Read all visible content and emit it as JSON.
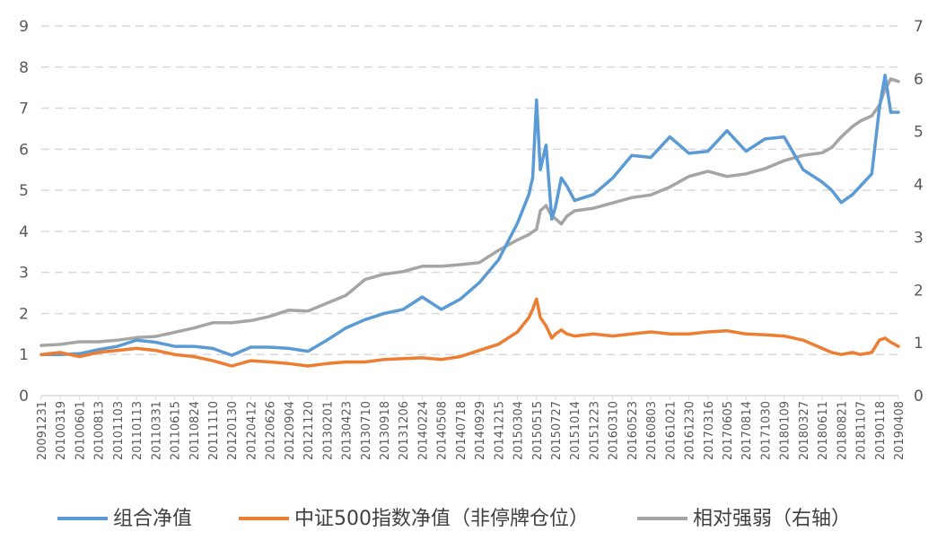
{
  "chart_data": {
    "type": "line",
    "title": "",
    "xlabel": "",
    "ylabel": "",
    "grid": true,
    "legend": "bottom",
    "left_axis": {
      "ylim": [
        0,
        9
      ],
      "ticks": [
        "0",
        "1",
        "2",
        "3",
        "4",
        "5",
        "6",
        "7",
        "8",
        "9"
      ]
    },
    "right_axis": {
      "ylim": [
        0,
        7
      ],
      "ticks": [
        "0",
        "1",
        "2",
        "3",
        "4",
        "5",
        "6",
        "7"
      ]
    },
    "x_tick_labels": [
      "20091231",
      "20100319",
      "20100601",
      "20100813",
      "20101103",
      "20110113",
      "20110331",
      "20110615",
      "20110824",
      "20111110",
      "20120130",
      "20120412",
      "20120626",
      "20120904",
      "20121120",
      "20130201",
      "20130423",
      "20130710",
      "20130918",
      "20131206",
      "20140224",
      "20140508",
      "20140718",
      "20140929",
      "20141215",
      "20150304",
      "20150515",
      "20150727",
      "20151014",
      "20151223",
      "20160310",
      "20160523",
      "20160803",
      "20161021",
      "20161230",
      "20170316",
      "20170605",
      "20170814",
      "20171030",
      "20180109",
      "20180327",
      "20180611",
      "20180821",
      "20181107",
      "20190118",
      "20190408"
    ],
    "series": [
      {
        "name": "组合净值",
        "color": "#5B9BD5",
        "axis": "left",
        "x_index": [
          0,
          1,
          2,
          3,
          4,
          5,
          6,
          7,
          8,
          9,
          10,
          11,
          12,
          13,
          14,
          15,
          16,
          17,
          18,
          19,
          20,
          21,
          22,
          23,
          24,
          25,
          25.6,
          25.8,
          26,
          26.2,
          26.5,
          26.8,
          27,
          27.3,
          27.6,
          28,
          29,
          30,
          31,
          32,
          33,
          34,
          35,
          36,
          37,
          38,
          39,
          40,
          41,
          41.5,
          42,
          42.6,
          43,
          43.6,
          44,
          44.3,
          44.6,
          45
        ],
        "values": [
          1.0,
          1.0,
          1.02,
          1.12,
          1.2,
          1.35,
          1.3,
          1.2,
          1.2,
          1.15,
          0.98,
          1.18,
          1.18,
          1.15,
          1.08,
          1.35,
          1.65,
          1.85,
          2.0,
          2.1,
          2.4,
          2.1,
          2.35,
          2.75,
          3.3,
          4.2,
          4.9,
          5.3,
          7.2,
          5.5,
          6.1,
          4.3,
          4.6,
          5.3,
          5.1,
          4.75,
          4.9,
          5.3,
          5.85,
          5.8,
          6.3,
          5.9,
          5.95,
          6.45,
          5.95,
          6.25,
          6.3,
          5.5,
          5.2,
          5.0,
          4.7,
          4.9,
          5.1,
          5.4,
          7.0,
          7.8,
          6.9,
          6.9
        ]
      },
      {
        "name": "中证500指数净值（非停牌仓位）",
        "color": "#ED7D31",
        "axis": "left",
        "x_index": [
          0,
          1,
          2,
          3,
          4,
          5,
          6,
          7,
          8,
          9,
          10,
          11,
          12,
          13,
          14,
          15,
          16,
          17,
          18,
          19,
          20,
          21,
          22,
          23,
          24,
          25,
          25.6,
          25.8,
          26,
          26.2,
          26.5,
          26.8,
          27,
          27.3,
          27.6,
          28,
          29,
          30,
          31,
          32,
          33,
          34,
          35,
          36,
          37,
          38,
          39,
          40,
          41,
          41.5,
          42,
          42.6,
          43,
          43.6,
          44,
          44.3,
          44.6,
          45
        ],
        "values": [
          1.0,
          1.05,
          0.95,
          1.05,
          1.1,
          1.15,
          1.1,
          1.0,
          0.95,
          0.85,
          0.72,
          0.85,
          0.82,
          0.78,
          0.72,
          0.78,
          0.82,
          0.82,
          0.88,
          0.9,
          0.92,
          0.88,
          0.95,
          1.1,
          1.25,
          1.55,
          1.9,
          2.1,
          2.35,
          1.9,
          1.7,
          1.4,
          1.5,
          1.6,
          1.5,
          1.45,
          1.5,
          1.45,
          1.5,
          1.55,
          1.5,
          1.5,
          1.55,
          1.58,
          1.5,
          1.48,
          1.45,
          1.35,
          1.15,
          1.05,
          1.0,
          1.05,
          1.0,
          1.05,
          1.35,
          1.4,
          1.3,
          1.2
        ]
      },
      {
        "name": "相对强弱（右轴）",
        "color": "#A5A5A5",
        "axis": "right",
        "x_index": [
          0,
          1,
          2,
          3,
          4,
          5,
          6,
          7,
          8,
          9,
          10,
          11,
          12,
          13,
          14,
          15,
          16,
          17,
          18,
          19,
          20,
          21,
          22,
          23,
          24,
          25,
          25.6,
          25.8,
          26,
          26.2,
          26.5,
          26.8,
          27,
          27.3,
          27.6,
          28,
          29,
          30,
          31,
          32,
          33,
          34,
          35,
          36,
          37,
          38,
          39,
          40,
          41,
          41.5,
          42,
          42.6,
          43,
          43.6,
          44,
          44.3,
          44.6,
          45
        ],
        "values": [
          0.95,
          0.97,
          1.02,
          1.02,
          1.05,
          1.1,
          1.12,
          1.2,
          1.28,
          1.38,
          1.38,
          1.42,
          1.5,
          1.62,
          1.6,
          1.75,
          1.9,
          2.2,
          2.3,
          2.35,
          2.45,
          2.45,
          2.48,
          2.52,
          2.75,
          2.95,
          3.05,
          3.1,
          3.15,
          3.5,
          3.6,
          3.4,
          3.35,
          3.25,
          3.4,
          3.5,
          3.55,
          3.65,
          3.75,
          3.8,
          3.95,
          4.15,
          4.25,
          4.15,
          4.2,
          4.3,
          4.45,
          4.55,
          4.6,
          4.7,
          4.9,
          5.1,
          5.2,
          5.3,
          5.5,
          5.8,
          6.0,
          5.95
        ]
      }
    ]
  }
}
